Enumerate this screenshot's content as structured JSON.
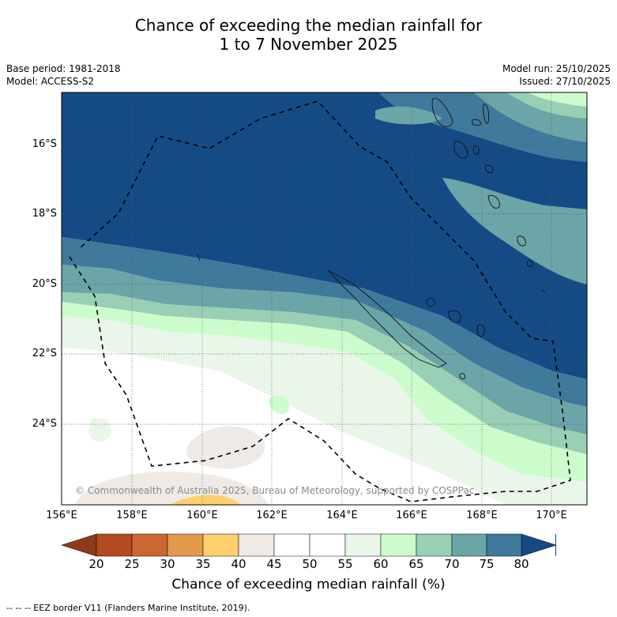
{
  "title_line1": "Chance of exceeding the median rainfall for",
  "title_line2": "1 to 7 November 2025",
  "meta": {
    "base_period": "Base period: 1981-2018",
    "model": "Model: ACCESS-S2",
    "model_run": "Model run: 25/10/2025",
    "issued": "Issued: 27/10/2025"
  },
  "latitude_labels": [
    "16°S",
    "18°S",
    "20°S",
    "22°S",
    "24°S"
  ],
  "longitude_labels": [
    "156°E",
    "158°E",
    "160°E",
    "162°E",
    "164°E",
    "166°E",
    "168°E",
    "170°E"
  ],
  "copyright": "© Commonwealth of Australia 2025, Bureau of Meteorology, supported by COSPPac",
  "colorbar": {
    "ticks": [
      "20",
      "25",
      "30",
      "35",
      "40",
      "45",
      "50",
      "55",
      "60",
      "65",
      "70",
      "75",
      "80"
    ],
    "colors": [
      "#8e3a1f",
      "#b34a22",
      "#cc6633",
      "#e49a4c",
      "#fdd06c",
      "#efeae5",
      "#ffffff",
      "#ffffff",
      "#eaf6ea",
      "#ccfccc",
      "#99cfb5",
      "#6ba5a8",
      "#3f7a9c",
      "#154b85"
    ],
    "label": "Chance of exceeding median rainfall (%)"
  },
  "footnote": "--  --  -- EEZ border V11 (Flanders Marine Institute, 2019)."
}
